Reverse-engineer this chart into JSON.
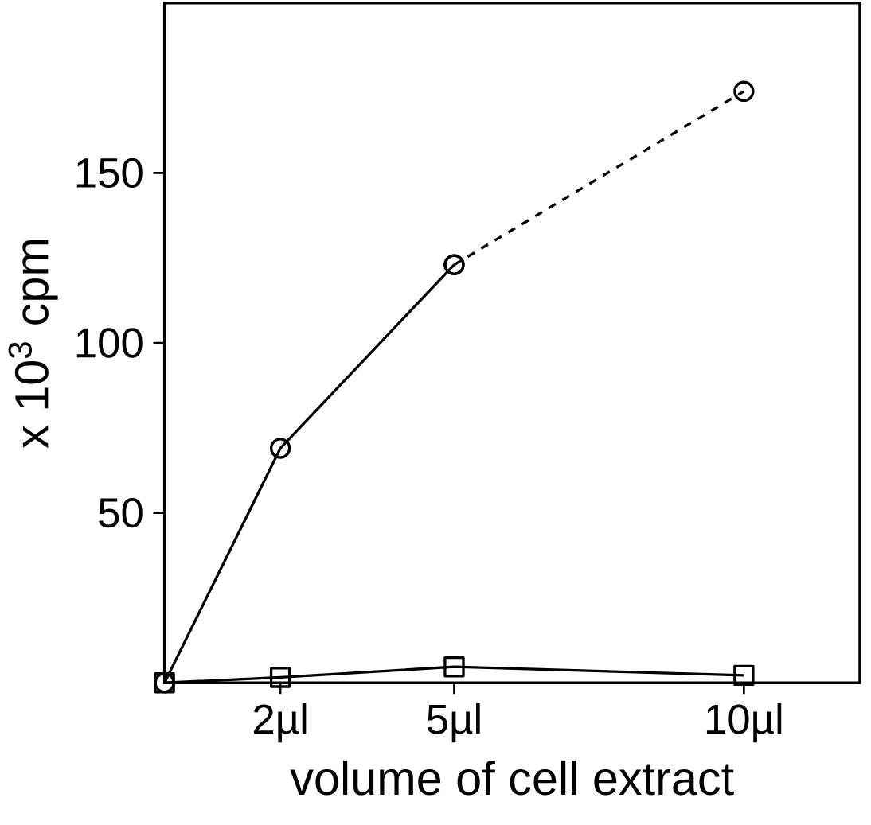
{
  "chart_data": {
    "type": "line",
    "xlabel": "volume of cell extract",
    "ylabel": "x 10$^{3}$ cpm",
    "xlim": [
      0,
      12
    ],
    "ylim": [
      0,
      200
    ],
    "xticks": [
      {
        "value": 2,
        "label": "2µl"
      },
      {
        "value": 5,
        "label": "5µl"
      },
      {
        "value": 10,
        "label": "10µl"
      }
    ],
    "yticks": [
      50,
      100,
      150
    ],
    "grid": false,
    "series": [
      {
        "color": "#000000",
        "x": [
          0,
          2,
          5
        ],
        "values": [
          0,
          69,
          123
        ],
        "marker": "circle",
        "line_style": "solid"
      },
      {
        "color": "#000000",
        "x": [
          5,
          10
        ],
        "values": [
          123,
          174
        ],
        "marker": "circle",
        "line_style": "dashed"
      },
      {
        "color": "#000000",
        "x": [
          0,
          2,
          5,
          10
        ],
        "values": [
          0,
          1.6,
          4.7,
          2.2
        ],
        "marker": "square",
        "line_style": "solid"
      }
    ]
  }
}
